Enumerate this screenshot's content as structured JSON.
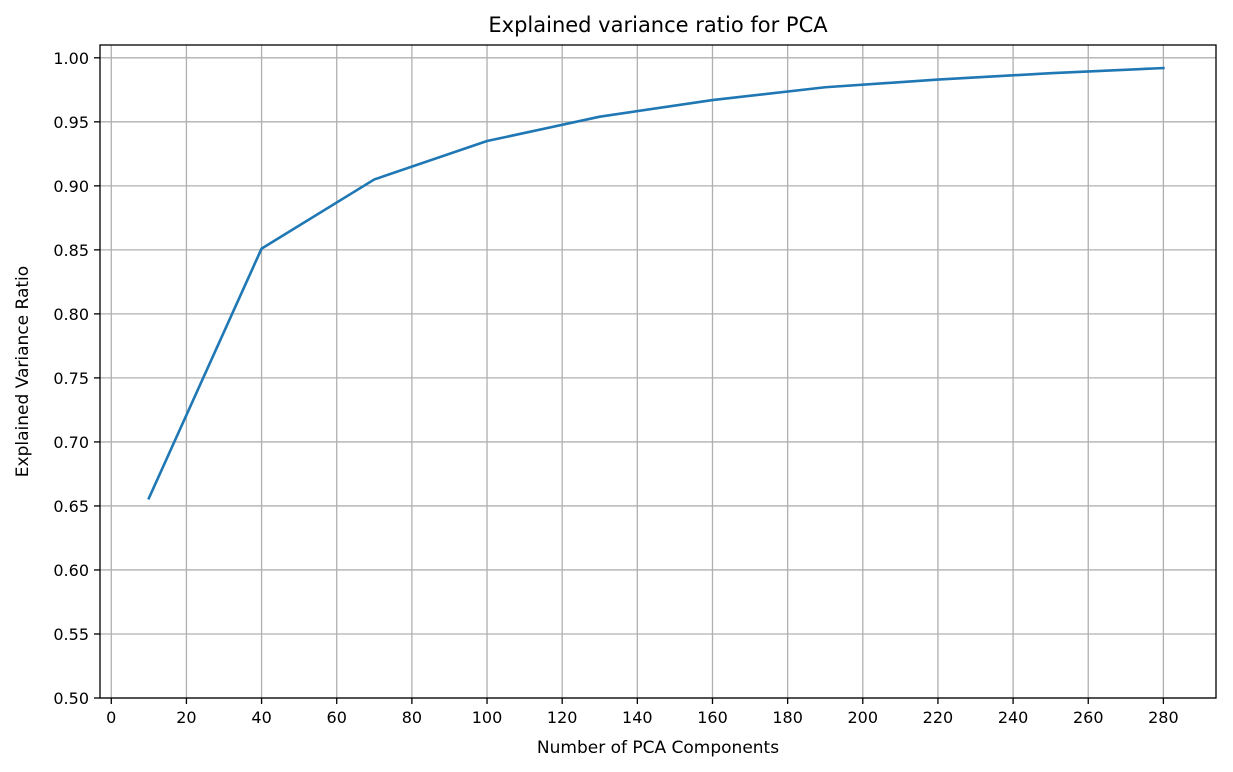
{
  "chart_data": {
    "type": "line",
    "title": "Explained variance ratio for PCA",
    "xlabel": "Number of PCA Components",
    "ylabel": "Explained Variance Ratio",
    "xlim": [
      -3,
      294
    ],
    "ylim": [
      0.5,
      1.01
    ],
    "xticks": [
      0,
      20,
      40,
      60,
      80,
      100,
      120,
      140,
      160,
      180,
      200,
      220,
      240,
      260,
      280
    ],
    "xtick_labels": [
      "0",
      "20",
      "40",
      "60",
      "80",
      "100",
      "120",
      "140",
      "160",
      "180",
      "200",
      "220",
      "240",
      "260",
      "280"
    ],
    "yticks": [
      0.5,
      0.55,
      0.6,
      0.65,
      0.7,
      0.75,
      0.8,
      0.85,
      0.9,
      0.95,
      1.0
    ],
    "ytick_labels": [
      "0.50",
      "0.55",
      "0.60",
      "0.65",
      "0.70",
      "0.75",
      "0.80",
      "0.85",
      "0.90",
      "0.95",
      "1.00"
    ],
    "grid": true,
    "legend": false,
    "series": [
      {
        "color": "#1f77b4",
        "x": [
          10,
          40,
          70,
          100,
          130,
          160,
          190,
          220,
          250,
          280
        ],
        "y": [
          0.656,
          0.851,
          0.905,
          0.935,
          0.954,
          0.967,
          0.977,
          0.983,
          0.988,
          0.992
        ]
      }
    ]
  }
}
